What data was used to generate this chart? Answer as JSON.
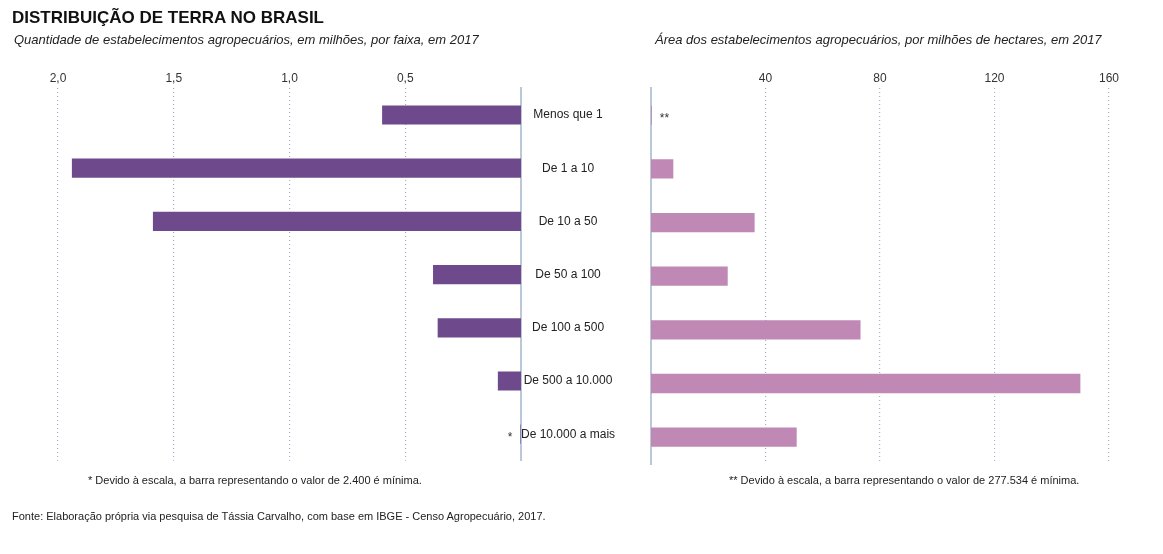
{
  "chart_data": [
    {
      "type": "bar",
      "orientation": "horizontal",
      "title": "DISTRIBUIÇÃO DE TERRA NO BRASIL",
      "subtitle": "Quantidade de estabelecimentos agropecuários, em milhões, por faixa, em 2017",
      "categories": [
        "Menos que 1",
        "De 1 a 10",
        "De 10 a 50",
        "De 50 a 100",
        "De 100 a 500",
        "De 500 a 10.000",
        "De 10.000 a mais"
      ],
      "values": [
        0.6,
        1.94,
        1.59,
        0.38,
        0.36,
        0.1,
        0.0024
      ],
      "color": "#6e4a8c",
      "xlim": [
        2,
        0
      ],
      "xticks": [
        {
          "value": 2,
          "label": "2,0"
        },
        {
          "value": 1.5,
          "label": "1,5"
        },
        {
          "value": 1,
          "label": "1,0"
        },
        {
          "value": 0.5,
          "label": "0,5"
        }
      ],
      "grid": "x",
      "annotations": [
        {
          "text": "*",
          "x": 0.0024,
          "y": "De 10.000 a mais"
        },
        "* Devido à escala, a barra representando o valor de 2.400  é mínima.",
        "Fonte: Elaboração própria via pesquisa de Tássia Carvalho, com base em  IBGE - Censo Agropecuário, 2017."
      ]
    },
    {
      "type": "bar",
      "orientation": "horizontal",
      "subtitle": "Área dos estabelecimentos agropecuários, por milhões de hectares, em 2017",
      "categories": [
        "Menos que 1",
        "De 1 a 10",
        "De 10 a 50",
        "De 50 a 100",
        "De 100 a 500",
        "De 500 a 10.000",
        "De 10.000 a mais"
      ],
      "values": [
        0.28,
        7.8,
        36.2,
        26.8,
        73.2,
        150,
        50.9
      ],
      "color": "#c088b4",
      "xlim": [
        0,
        160
      ],
      "xticks": [
        40,
        80,
        120,
        160
      ],
      "grid": "x",
      "tick_labels": "x",
      "annotations": [
        {
          "text": "**",
          "x": 0.28,
          "y": "Menos que 1"
        },
        "** Devido à escala, a barra representando o valor de 277.534  é mínima."
      ]
    }
  ]
}
